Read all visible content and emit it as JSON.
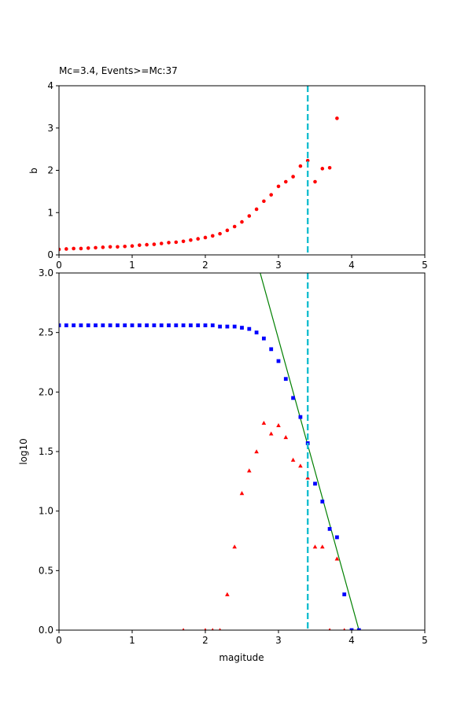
{
  "chart_data": [
    {
      "type": "scatter",
      "title": "Mc=3.4, Events>=Mc:37",
      "xlabel": "",
      "ylabel": "b",
      "xlim": [
        0,
        5
      ],
      "ylim": [
        0,
        4
      ],
      "xticks": [
        "0",
        "1",
        "2",
        "3",
        "4",
        "5"
      ],
      "yticks": [
        "0",
        "1",
        "2",
        "3",
        "4"
      ],
      "vline": {
        "x": 3.4,
        "color": "#17becf",
        "style": "dashed"
      },
      "series": [
        {
          "marker": "circle",
          "color": "#ff0000",
          "points": [
            [
              0.0,
              0.13
            ],
            [
              0.1,
              0.14
            ],
            [
              0.2,
              0.15
            ],
            [
              0.3,
              0.15
            ],
            [
              0.4,
              0.16
            ],
            [
              0.5,
              0.17
            ],
            [
              0.6,
              0.18
            ],
            [
              0.7,
              0.19
            ],
            [
              0.8,
              0.19
            ],
            [
              0.9,
              0.2
            ],
            [
              1.0,
              0.21
            ],
            [
              1.1,
              0.23
            ],
            [
              1.2,
              0.24
            ],
            [
              1.3,
              0.25
            ],
            [
              1.4,
              0.27
            ],
            [
              1.5,
              0.29
            ],
            [
              1.6,
              0.3
            ],
            [
              1.7,
              0.32
            ],
            [
              1.8,
              0.35
            ],
            [
              1.9,
              0.38
            ],
            [
              2.0,
              0.41
            ],
            [
              2.1,
              0.45
            ],
            [
              2.2,
              0.5
            ],
            [
              2.3,
              0.58
            ],
            [
              2.4,
              0.67
            ],
            [
              2.5,
              0.78
            ],
            [
              2.6,
              0.92
            ],
            [
              2.7,
              1.08
            ],
            [
              2.8,
              1.27
            ],
            [
              2.9,
              1.42
            ],
            [
              3.0,
              1.62
            ],
            [
              3.1,
              1.73
            ],
            [
              3.2,
              1.85
            ],
            [
              3.3,
              2.1
            ],
            [
              3.4,
              2.23
            ],
            [
              3.5,
              1.73
            ],
            [
              3.6,
              2.04
            ],
            [
              3.7,
              2.06
            ],
            [
              3.8,
              3.23
            ]
          ]
        }
      ]
    },
    {
      "type": "scatter",
      "title": "",
      "xlabel": "magitude",
      "ylabel": "log10",
      "xlim": [
        0,
        5
      ],
      "ylim": [
        0,
        3
      ],
      "xticks": [
        "0",
        "1",
        "2",
        "3",
        "4",
        "5"
      ],
      "yticks": [
        "0.0",
        "0.5",
        "1.0",
        "1.5",
        "2.0",
        "2.5",
        "3.0"
      ],
      "vline": {
        "x": 3.4,
        "color": "#17becf",
        "style": "dashed"
      },
      "fit_line": {
        "color": "#008000",
        "points": [
          [
            2.75,
            3.0
          ],
          [
            4.1,
            0.0
          ]
        ]
      },
      "series": [
        {
          "marker": "square",
          "color": "#0000ff",
          "points": [
            [
              0.0,
              2.56
            ],
            [
              0.1,
              2.56
            ],
            [
              0.2,
              2.56
            ],
            [
              0.3,
              2.56
            ],
            [
              0.4,
              2.56
            ],
            [
              0.5,
              2.56
            ],
            [
              0.6,
              2.56
            ],
            [
              0.7,
              2.56
            ],
            [
              0.8,
              2.56
            ],
            [
              0.9,
              2.56
            ],
            [
              1.0,
              2.56
            ],
            [
              1.1,
              2.56
            ],
            [
              1.2,
              2.56
            ],
            [
              1.3,
              2.56
            ],
            [
              1.4,
              2.56
            ],
            [
              1.5,
              2.56
            ],
            [
              1.6,
              2.56
            ],
            [
              1.7,
              2.56
            ],
            [
              1.8,
              2.56
            ],
            [
              1.9,
              2.56
            ],
            [
              2.0,
              2.56
            ],
            [
              2.1,
              2.56
            ],
            [
              2.2,
              2.55
            ],
            [
              2.3,
              2.55
            ],
            [
              2.4,
              2.55
            ],
            [
              2.5,
              2.54
            ],
            [
              2.6,
              2.53
            ],
            [
              2.7,
              2.5
            ],
            [
              2.8,
              2.45
            ],
            [
              2.9,
              2.36
            ],
            [
              3.0,
              2.26
            ],
            [
              3.1,
              2.11
            ],
            [
              3.2,
              1.95
            ],
            [
              3.3,
              1.79
            ],
            [
              3.4,
              1.57
            ],
            [
              3.5,
              1.23
            ],
            [
              3.6,
              1.08
            ],
            [
              3.7,
              0.85
            ],
            [
              3.8,
              0.78
            ],
            [
              3.9,
              0.3
            ],
            [
              4.0,
              0.0
            ],
            [
              4.1,
              0.0
            ]
          ]
        },
        {
          "marker": "triangle",
          "color": "#ff0000",
          "points": [
            [
              1.7,
              0.0
            ],
            [
              2.0,
              0.0
            ],
            [
              2.1,
              0.0
            ],
            [
              2.2,
              0.0
            ],
            [
              2.3,
              0.3
            ],
            [
              2.4,
              0.7
            ],
            [
              2.5,
              1.15
            ],
            [
              2.6,
              1.34
            ],
            [
              2.7,
              1.5
            ],
            [
              2.8,
              1.74
            ],
            [
              2.9,
              1.65
            ],
            [
              3.0,
              1.72
            ],
            [
              3.1,
              1.62
            ],
            [
              3.2,
              1.43
            ],
            [
              3.3,
              1.38
            ],
            [
              3.4,
              1.28
            ],
            [
              3.5,
              0.7
            ],
            [
              3.6,
              0.7
            ],
            [
              3.7,
              0.0
            ],
            [
              3.8,
              0.6
            ],
            [
              3.9,
              0.0
            ]
          ]
        }
      ]
    }
  ]
}
